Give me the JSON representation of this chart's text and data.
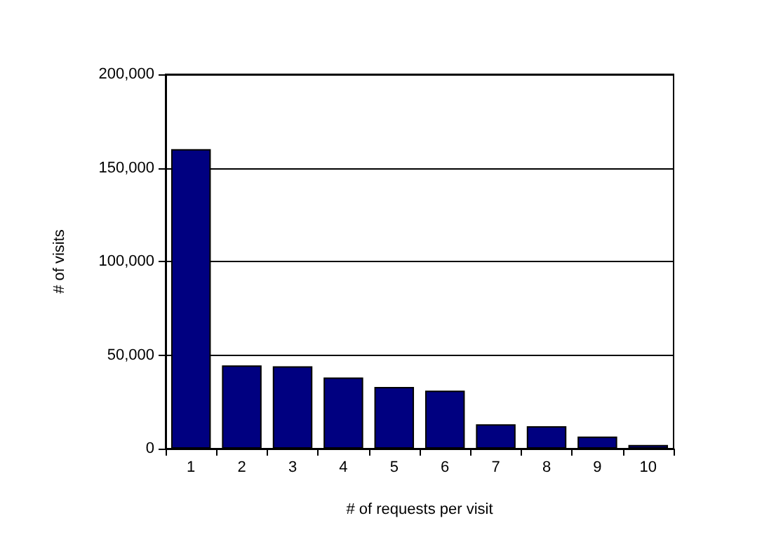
{
  "chart_data": {
    "type": "bar",
    "xlabel": "# of requests per visit",
    "ylabel": "# of visits",
    "categories": [
      "1",
      "2",
      "3",
      "4",
      "5",
      "6",
      "7",
      "8",
      "9",
      "10"
    ],
    "values": [
      160000,
      44500,
      44000,
      38000,
      33000,
      31000,
      13000,
      12000,
      6500,
      2000
    ],
    "color": "#000080",
    "ylim": [
      0,
      200000
    ],
    "yticks": [
      0,
      {
        "value": 50000,
        "label": "50,000"
      },
      {
        "value": 100000,
        "label": "100,000"
      },
      {
        "value": 150000,
        "label": "150,000"
      },
      {
        "value": 200000,
        "label": "200,000"
      }
    ],
    "grid": "y"
  }
}
